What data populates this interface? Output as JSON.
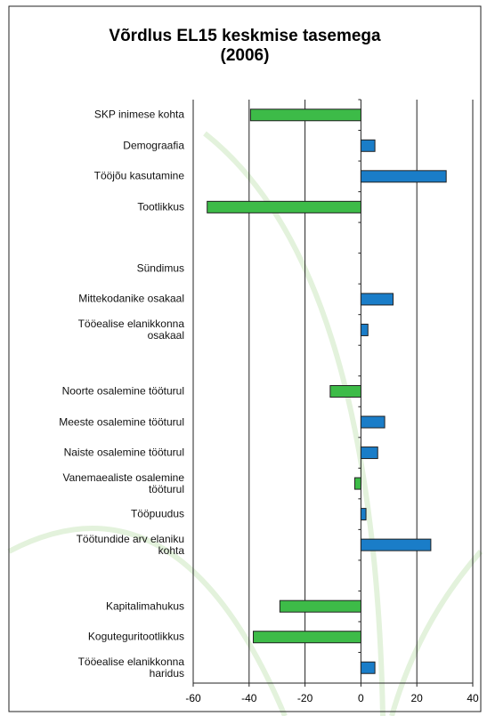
{
  "chart_data": {
    "type": "hbar",
    "title": "Võrdlus EL15 keskmise tasemega\n(2006)",
    "categories": [
      "SKP inimese kohta",
      "Demograafia",
      "Tööjõu kasutamine",
      "Tootlikkus",
      null,
      "Sündimus",
      "Mittekodanike osakaal",
      "Tööealise elanikkonna\nosakaal",
      null,
      "Noorte osalemine tööturul",
      "Meeste osalemine tööturul",
      "Naiste osalemine tööturul",
      "Vanemaealiste osalemine\ntööturul",
      "Tööpuudus",
      "Töötundide arv elaniku\nkohta",
      null,
      "Kapitalimahukus",
      "Koguteguritootlikkus",
      "Tööealise elanikkonna\nharidus"
    ],
    "values": [
      -39.5,
      5,
      30.5,
      -55,
      null,
      0,
      11.5,
      2.5,
      null,
      -11,
      8.5,
      6,
      -2.2,
      1.8,
      25,
      null,
      -29,
      -38.5,
      5
    ],
    "positive_color": "#1a7dc8",
    "negative_color": "#3dbb48",
    "xlim": [
      -60,
      40
    ],
    "xticks": [
      -60,
      -40,
      -20,
      0,
      20,
      40
    ],
    "grid": true
  }
}
